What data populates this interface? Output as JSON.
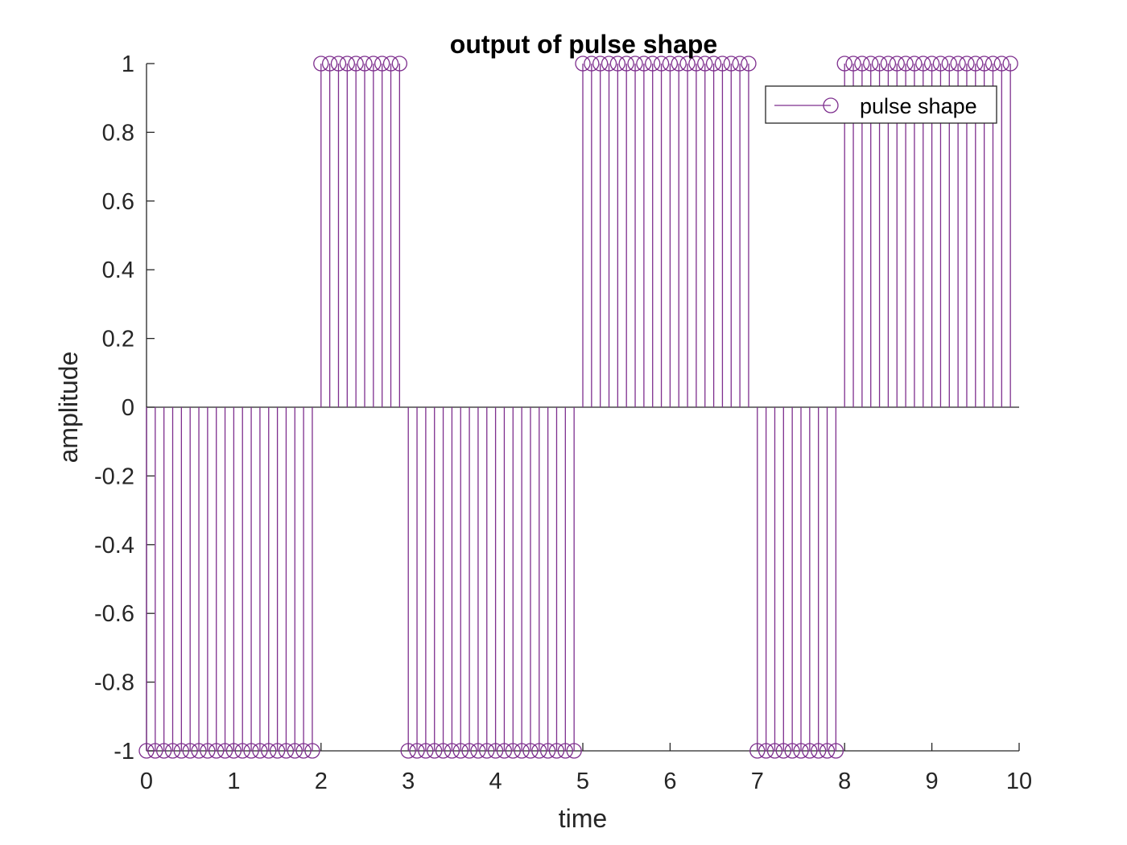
{
  "chart_data": {
    "type": "stem",
    "title": "output of pulse shape",
    "xlabel": "time",
    "ylabel": "amplitude",
    "xlim": [
      0,
      10
    ],
    "ylim": [
      -1,
      1
    ],
    "xticks": [
      "0",
      "1",
      "2",
      "3",
      "4",
      "5",
      "6",
      "7",
      "8",
      "9",
      "10"
    ],
    "yticks": [
      "-1",
      "-0.8",
      "-0.6",
      "-0.4",
      "-0.2",
      "0",
      "0.2",
      "0.4",
      "0.6",
      "0.8",
      "1"
    ],
    "legend": {
      "label": "pulse shape",
      "position": "top-right"
    },
    "grid": false,
    "series": [
      {
        "name": "pulse shape",
        "color": "#7E2F8E",
        "marker": "circle",
        "segments": [
          {
            "x_start": 0,
            "x_end": 1.9,
            "step": 0.1,
            "value": -1
          },
          {
            "x_start": 2,
            "x_end": 2.9,
            "step": 0.1,
            "value": 1
          },
          {
            "x_start": 3,
            "x_end": 4.9,
            "step": 0.1,
            "value": -1
          },
          {
            "x_start": 5,
            "x_end": 6.9,
            "step": 0.1,
            "value": 1
          },
          {
            "x_start": 7,
            "x_end": 7.9,
            "step": 0.1,
            "value": -1
          },
          {
            "x_start": 8,
            "x_end": 9.9,
            "step": 0.1,
            "value": 1
          }
        ]
      }
    ]
  }
}
